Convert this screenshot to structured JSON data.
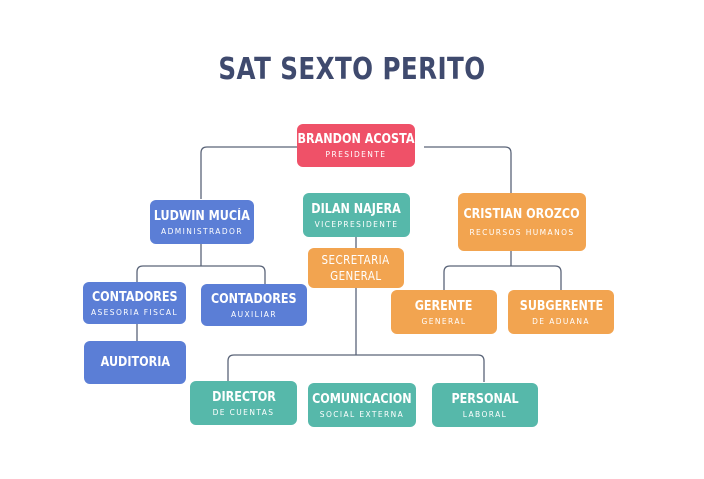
{
  "title": "SAT SEXTO PERITO",
  "colors": {
    "title": "#3f4a6e",
    "red": "#ef5168",
    "blue": "#5b7ed6",
    "teal": "#56b8aa",
    "orange": "#f2a450",
    "connector": "#5a6478"
  },
  "nodes": {
    "presidente": {
      "name": "BRANDON ACOSTA",
      "role": "PRESIDENTE"
    },
    "administrador": {
      "name": "LUDWIN MUCÍA",
      "role": "ADMINISTRADOR"
    },
    "vicepresidente": {
      "name": "DILAN NAJERA",
      "role": "VICEPRESIDENTE"
    },
    "recursos_humanos": {
      "name": "CRISTIAN OROZCO",
      "role": "RECURSOS HUMANOS"
    },
    "secretaria": {
      "line1": "SECRETARIA",
      "line2": "GENERAL"
    },
    "contadores_fiscal": {
      "name": "CONTADORES",
      "role": "ASESORIA FISCAL"
    },
    "contadores_auxiliar": {
      "name": "CONTADORES",
      "role": "AUXILIAR"
    },
    "auditoria": {
      "name": "AUDITORIA"
    },
    "gerente": {
      "name": "GERENTE",
      "role": "GENERAL"
    },
    "subgerente": {
      "name": "SUBGERENTE",
      "role": "DE ADUANA"
    },
    "director": {
      "name": "DIRECTOR",
      "role": "DE CUENTAS"
    },
    "comunicacion": {
      "name": "COMUNICACION",
      "role": "SOCIAL EXTERNA"
    },
    "personal": {
      "name": "PERSONAL",
      "role": "LABORAL"
    }
  }
}
